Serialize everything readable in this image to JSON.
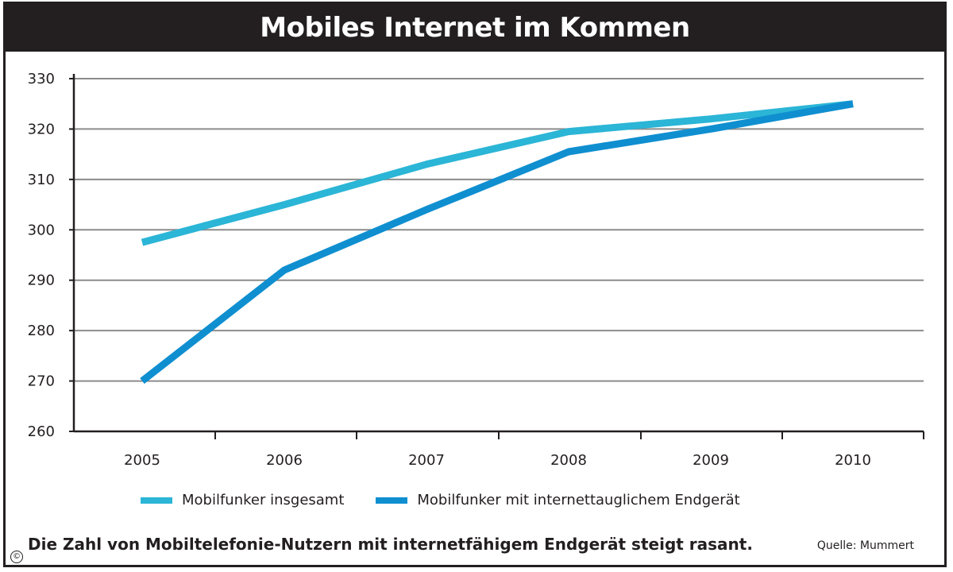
{
  "title": "Mobiles Internet im Kommen",
  "caption": "Die Zahl von Mobiltelefonie-Nutzern mit internetfähigem Endgerät steigt rasant.",
  "source": "Quelle: Mummert",
  "copyright_icon": "©",
  "colors": {
    "frame": "#231f20",
    "grid": "#8c8c8c",
    "series_1": "#2bb5d6",
    "series_2": "#0f8fd0"
  },
  "chart_data": {
    "type": "line",
    "title": "Mobiles Internet im Kommen",
    "x": [
      "2005",
      "2006",
      "2007",
      "2008",
      "2009",
      "2010"
    ],
    "xlabel": "",
    "ylabel": "",
    "ylim": [
      260,
      330
    ],
    "yticks": [
      260,
      270,
      280,
      290,
      300,
      310,
      320,
      330
    ],
    "grid": true,
    "legend_position": "bottom",
    "series": [
      {
        "name": "Mobilfunker insgesamt",
        "color": "#2bb5d6",
        "values": [
          297.5,
          305,
          313,
          319.5,
          322,
          325
        ]
      },
      {
        "name": "Mobilfunker mit internettauglichem Endgerät",
        "color": "#0f8fd0",
        "values": [
          270,
          292,
          304,
          315.5,
          320,
          325
        ]
      }
    ]
  }
}
